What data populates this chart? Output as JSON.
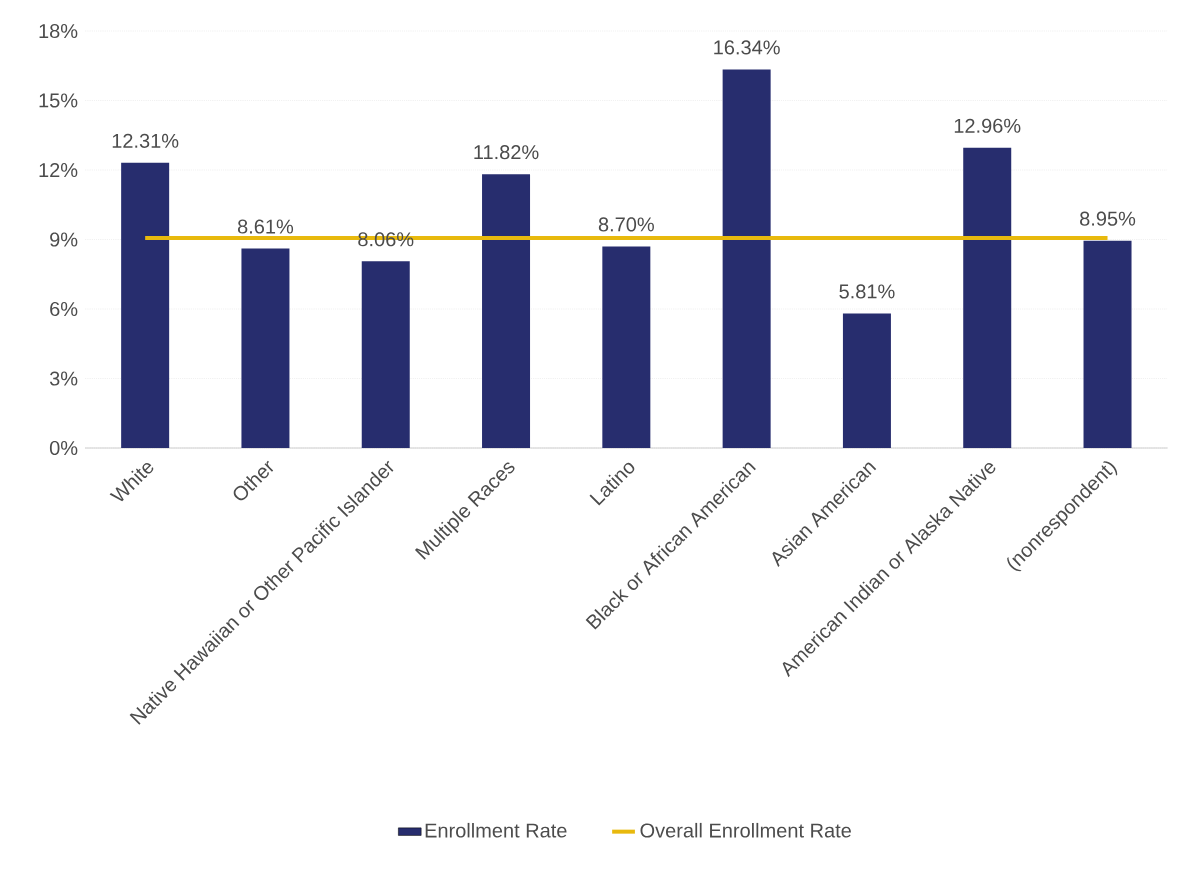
{
  "chart_data": {
    "type": "bar",
    "categories": [
      "White",
      "Other",
      "Native Hawaiian or Other Pacific Islander",
      "Multiple Races",
      "Latino",
      "Black or African American",
      "Asian American",
      "American Indian or Alaska Native",
      "(nonrespondent)"
    ],
    "series": [
      {
        "name": "Enrollment Rate",
        "color": "#272d6e",
        "values": [
          12.31,
          8.61,
          8.06,
          11.82,
          8.7,
          16.34,
          5.81,
          12.96,
          8.95
        ],
        "value_labels": [
          "12.31%",
          "8.61%",
          "8.06%",
          "11.82%",
          "8.70%",
          "16.34%",
          "5.81%",
          "12.96%",
          "8.95%"
        ]
      },
      {
        "name": "Overall Enrollment Rate",
        "type": "line",
        "color": "#e8b90d",
        "values": [
          9.06,
          9.06,
          9.06,
          9.06,
          9.06,
          9.06,
          9.06,
          9.06,
          9.06
        ]
      }
    ],
    "ylim": [
      0,
      18
    ],
    "yticks": [
      {
        "value": 0,
        "label": "0%"
      },
      {
        "value": 3,
        "label": "3%"
      },
      {
        "value": 6,
        "label": "6%"
      },
      {
        "value": 9,
        "label": "9%"
      },
      {
        "value": 12,
        "label": "12%"
      },
      {
        "value": 15,
        "label": "15%"
      },
      {
        "value": 18,
        "label": "18%"
      }
    ],
    "grid": "y",
    "legend": "bottom"
  }
}
